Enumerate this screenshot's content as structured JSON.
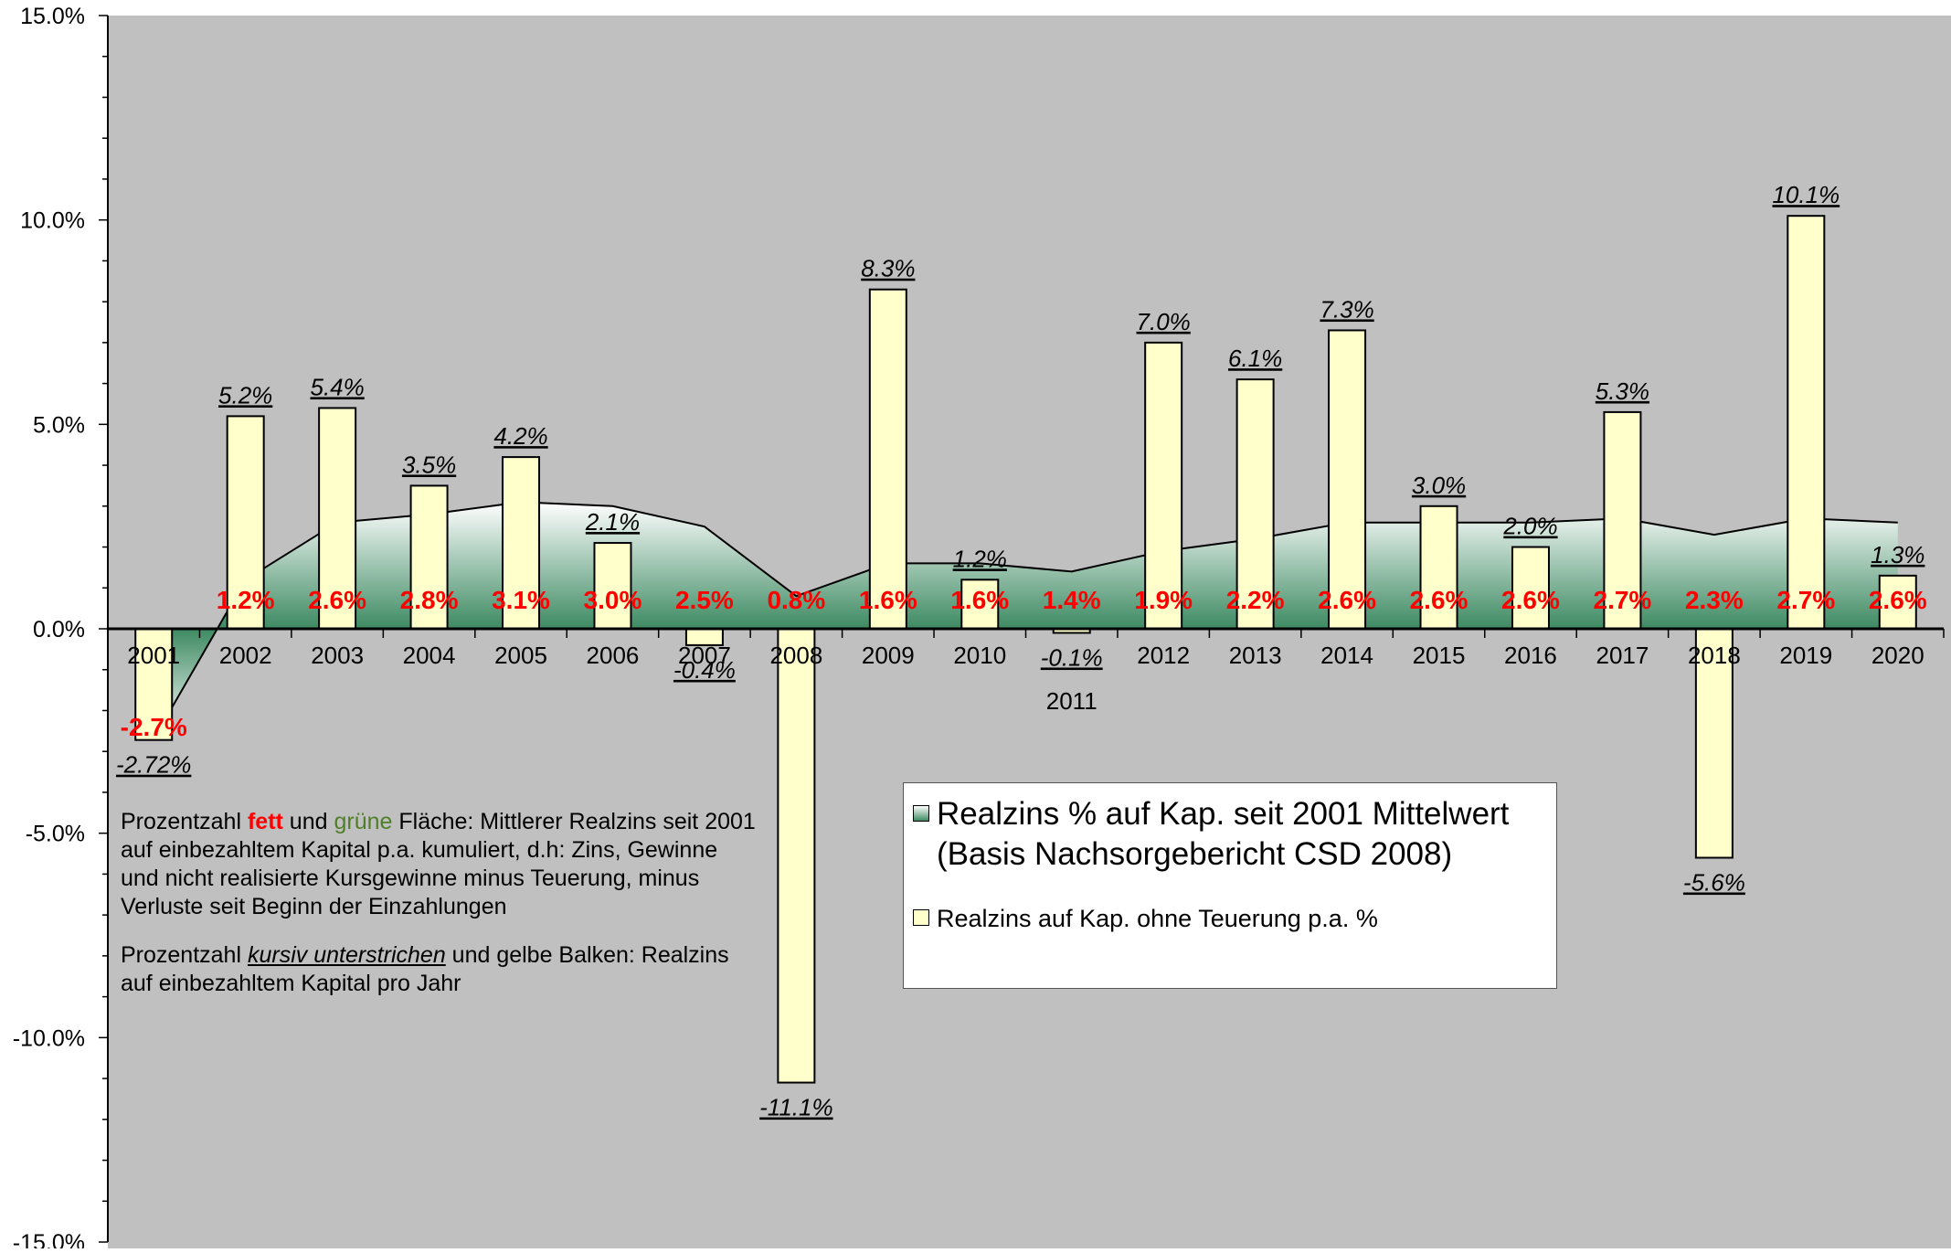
{
  "chart_data": {
    "type": "bar",
    "categories": [
      "2001",
      "2002",
      "2003",
      "2004",
      "2005",
      "2006",
      "2007",
      "2008",
      "2009",
      "2010",
      "2011",
      "2012",
      "2013",
      "2014",
      "2015",
      "2016",
      "2017",
      "2018",
      "2019",
      "2020"
    ],
    "series": [
      {
        "name": "Realzins auf Kap. ohne Teuerung p.a. %",
        "type": "bar",
        "values": [
          -2.72,
          5.2,
          5.4,
          3.5,
          4.2,
          2.1,
          -0.4,
          -11.1,
          8.3,
          1.2,
          -0.1,
          7.0,
          6.1,
          7.3,
          3.0,
          2.0,
          5.3,
          -5.6,
          10.1,
          1.3
        ],
        "labels": [
          "-2.72%",
          "5.2%",
          "5.4%",
          "3.5%",
          "4.2%",
          "2.1%",
          "-0.4%",
          "-11.1%",
          "8.3%",
          "1.2%",
          "-0.1%",
          "7.0%",
          "6.1%",
          "7.3%",
          "3.0%",
          "2.0%",
          "5.3%",
          "-5.6%",
          "10.1%",
          "1.3%"
        ],
        "color": "#ffffcc"
      },
      {
        "name": "Realzins % auf Kap. seit 2001 Mittelwert (Basis Nachsorgebericht CSD 2008)",
        "type": "area",
        "values": [
          -2.7,
          1.2,
          2.6,
          2.8,
          3.1,
          3.0,
          2.5,
          0.8,
          1.6,
          1.6,
          1.4,
          1.9,
          2.2,
          2.6,
          2.6,
          2.6,
          2.7,
          2.3,
          2.7,
          2.6
        ],
        "labels": [
          "-2.7%",
          "1.2%",
          "2.6%",
          "2.8%",
          "3.1%",
          "3.0%",
          "2.5%",
          "0.8%",
          "1.6%",
          "1.6%",
          "1.4%",
          "1.9%",
          "2.2%",
          "2.6%",
          "2.6%",
          "2.6%",
          "2.7%",
          "2.3%",
          "2.7%",
          "2.6%"
        ],
        "color": "#ff0000"
      }
    ],
    "yticks": [
      "15.0%",
      "10.0%",
      "5.0%",
      "0.0%",
      "-5.0%",
      "-10.0%",
      "-15.0%"
    ],
    "ylim": [
      -15,
      15
    ],
    "grid": false,
    "background": "#c0c0c0",
    "legend_position": "center-right"
  },
  "legend": {
    "entries": [
      "Realzins % auf Kap. seit 2001 Mittelwert (Basis Nachsorgebericht CSD 2008)",
      "Realzins auf Kap. ohne Teuerung p.a. %"
    ]
  },
  "note": {
    "p1_before_fett": "Prozentzahl ",
    "fett": "fett",
    "p1_und": " und ",
    "gruene": "grüne",
    "p1_rest": " Fläche: Mittlerer Realzins seit 2001 auf einbezahltem Kapital p.a. kumuliert, d.h: Zins, Gewinne und nicht realisierte Kursgewinne minus Teuerung, minus Verluste seit Beginn der Einzahlungen",
    "p2_before": "Prozentzahl ",
    "kursiv": "kursiv unterstrichen",
    "p2_rest": " und gelbe Balken: Realzins auf einbezahltem Kapital pro Jahr"
  }
}
